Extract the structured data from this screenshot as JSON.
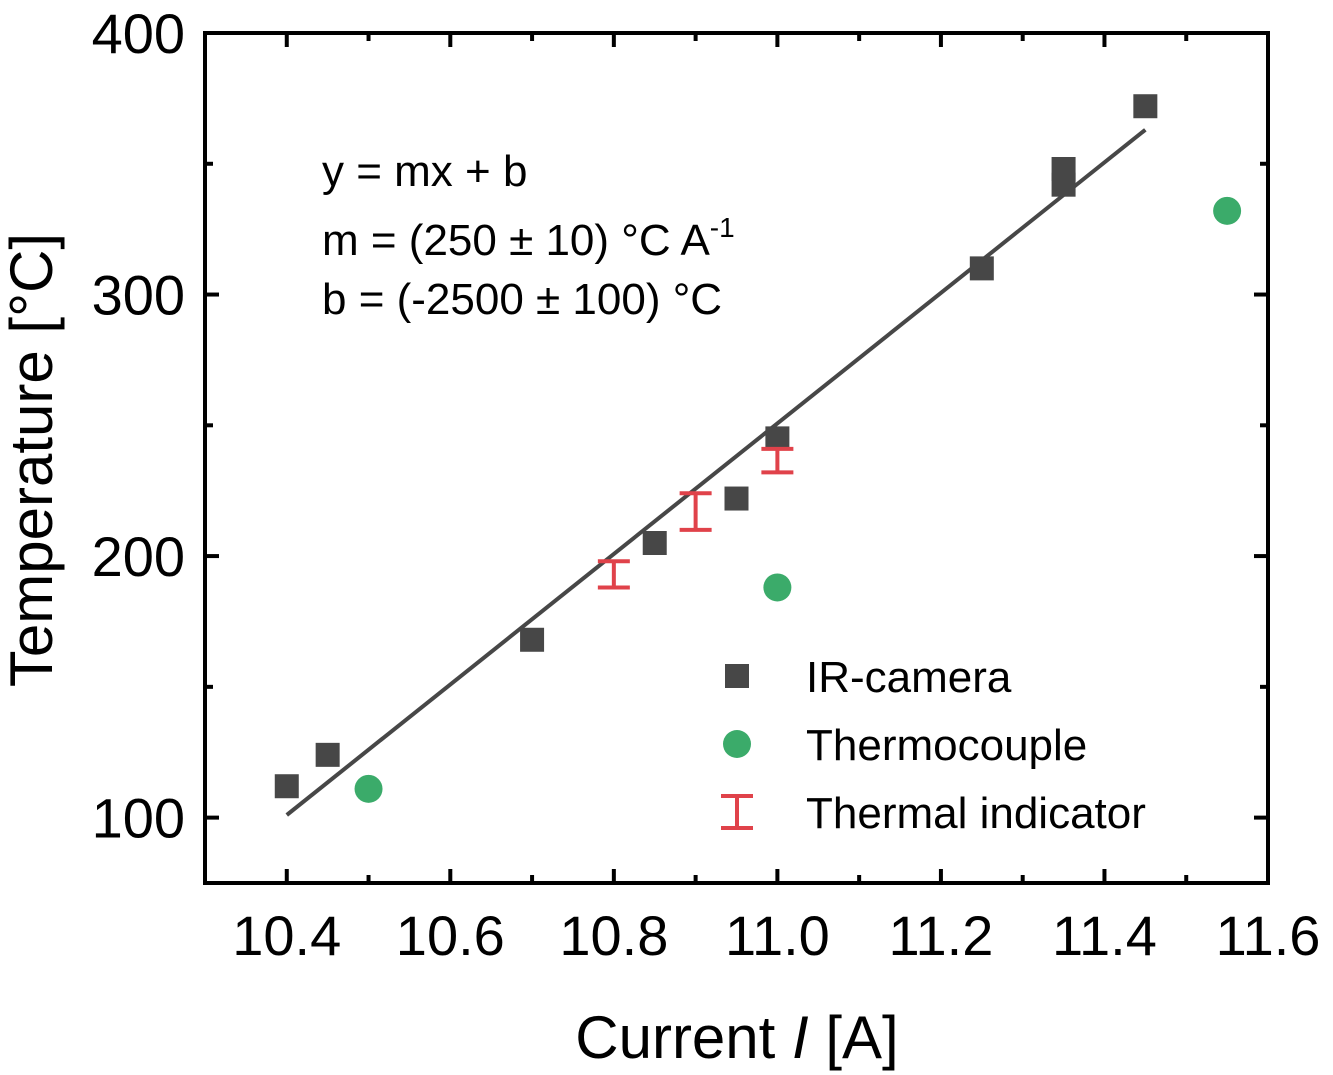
{
  "chart_data": {
    "type": "scatter",
    "xlabel": "Current",
    "xlabel_symbol": "I",
    "xlabel_unit": "[A]",
    "ylabel": "Temperature [°C]",
    "xlim": [
      10.3,
      11.6
    ],
    "ylim": [
      75,
      400
    ],
    "x_ticks": [
      10.4,
      10.6,
      10.8,
      11.0,
      11.2,
      11.4,
      11.6
    ],
    "x_tick_labels": [
      "10.4",
      "10.6",
      "10.8",
      "11.0",
      "11.2",
      "11.4",
      "11.6"
    ],
    "y_ticks": [
      100,
      200,
      300,
      400
    ],
    "y_tick_labels": [
      "100",
      "200",
      "300",
      "400"
    ],
    "y_minor_ticks": [
      150,
      250,
      350
    ],
    "x_minor_ticks": [
      10.5,
      10.7,
      10.9,
      11.1,
      11.3,
      11.5
    ],
    "grid": false,
    "legend_position": "bottom-right",
    "annotation": {
      "line1": "y = mx + b",
      "line2": "m = (250 ± 10) °C A",
      "line2_sup": "-1",
      "line3": "b = (-2500 ± 100) °C"
    },
    "fit": {
      "x": [
        10.4,
        11.45
      ],
      "y": [
        101,
        363
      ],
      "color": "#474747"
    },
    "series": [
      {
        "name": "IR-camera",
        "marker": "square",
        "color": "#474747",
        "points": [
          {
            "x": 10.4,
            "y": 112
          },
          {
            "x": 10.45,
            "y": 124
          },
          {
            "x": 10.7,
            "y": 168
          },
          {
            "x": 10.85,
            "y": 205
          },
          {
            "x": 10.95,
            "y": 222
          },
          {
            "x": 11.0,
            "y": 245
          },
          {
            "x": 11.25,
            "y": 310
          },
          {
            "x": 11.35,
            "y": 342
          },
          {
            "x": 11.35,
            "y": 348
          },
          {
            "x": 11.45,
            "y": 372
          }
        ]
      },
      {
        "name": "Thermocouple",
        "marker": "circle",
        "color": "#3bab6a",
        "points": [
          {
            "x": 10.5,
            "y": 111
          },
          {
            "x": 11.0,
            "y": 188
          },
          {
            "x": 11.55,
            "y": 332
          }
        ]
      },
      {
        "name": "Thermal indicator",
        "marker": "errorbar",
        "color": "#e0424a",
        "points": [
          {
            "x": 10.8,
            "y_low": 188,
            "y_high": 198
          },
          {
            "x": 10.9,
            "y_low": 210,
            "y_high": 224
          },
          {
            "x": 11.0,
            "y_low": 232,
            "y_high": 241
          }
        ]
      }
    ]
  }
}
